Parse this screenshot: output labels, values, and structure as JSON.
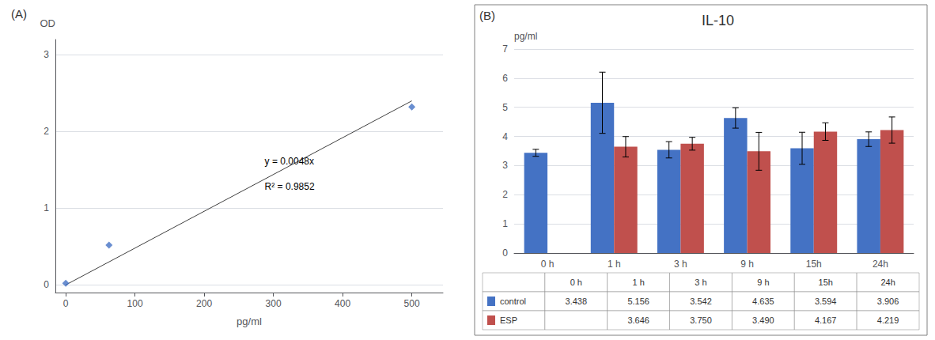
{
  "chart_data": [
    {
      "type": "scatter",
      "annotations": [
        "(A)",
        "y = 0.0048x",
        "R² = 0.9852"
      ],
      "xlabel": "pg/ml",
      "ylabel": "OD",
      "series": [
        {
          "type": "line",
          "color": "#404040",
          "x": [
            0,
            500
          ],
          "values": [
            0,
            2.4
          ]
        },
        {
          "type": "scatter",
          "color": "#4472C4",
          "marker": "diamond",
          "x": [
            0,
            62.5,
            500
          ],
          "values": [
            0.02,
            0.52,
            2.32
          ]
        }
      ],
      "xlim": [
        -15,
        545
      ],
      "xticks": [
        0,
        100,
        200,
        300,
        400,
        500
      ],
      "ylim": [
        -0.1,
        3.2
      ],
      "yticks": [
        0,
        1,
        2,
        3
      ],
      "grid": true
    },
    {
      "type": "bar",
      "title": "IL-10",
      "annotations": [
        "(B)"
      ],
      "ylabel": "pg/ml",
      "categories": [
        "0 h",
        "1 h",
        "3 h",
        "9 h",
        "15h",
        "24h"
      ],
      "series": [
        {
          "name": "control",
          "color": "#4472C4",
          "values": [
            3.438,
            5.156,
            3.542,
            4.635,
            3.594,
            3.906
          ],
          "value_labels": [
            "3.438",
            "5.156",
            "3.542",
            "4.635",
            "3.594",
            "3.906"
          ],
          "errors": [
            0.12,
            1.05,
            0.28,
            0.35,
            0.55,
            0.25
          ]
        },
        {
          "name": "ESP",
          "color": "#C0504D",
          "values": [
            null,
            3.646,
            3.75,
            3.49,
            4.167,
            4.219
          ],
          "value_labels": [
            null,
            "3.646",
            "3.750",
            "3.490",
            "4.167",
            "4.219"
          ],
          "errors": [
            null,
            0.35,
            0.22,
            0.65,
            0.3,
            0.45
          ]
        }
      ],
      "ylim": [
        0,
        7
      ],
      "yticks": [
        0,
        1,
        2,
        3,
        4,
        5,
        6,
        7
      ],
      "grid": true
    }
  ]
}
